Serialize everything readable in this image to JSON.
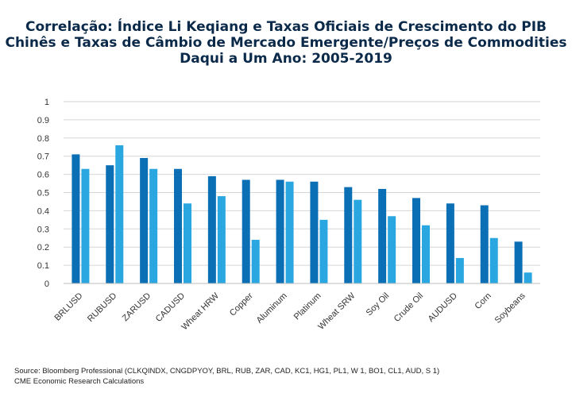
{
  "chart_data": {
    "type": "bar",
    "title_lines": [
      "Correlação: Índice Li Keqiang e Taxas Oficiais de Crescimento do PIB",
      "Chinês e Taxas de Câmbio de Mercado Emergente/Preços de Commodities",
      "Daqui a Um Ano: 2005-2019"
    ],
    "categories": [
      "BRLUSD",
      "RUBUSD",
      "ZARUSD",
      "CADUSD",
      "Wheat HRW",
      "Copper",
      "Aluminum",
      "Platinum",
      "Wheat SRW",
      "Soy Oil",
      "Crude Oil",
      "AUDUSD",
      "Corn",
      "Soybeans"
    ],
    "series": [
      {
        "values": [
          0.71,
          0.65,
          0.69,
          0.63,
          0.59,
          0.57,
          0.57,
          0.56,
          0.53,
          0.52,
          0.47,
          0.44,
          0.43,
          0.23
        ],
        "color": "#0a6fb5"
      },
      {
        "values": [
          0.63,
          0.76,
          0.63,
          0.44,
          0.48,
          0.24,
          0.56,
          0.35,
          0.46,
          0.37,
          0.32,
          0.14,
          0.25,
          0.06
        ],
        "color": "#2aa7e0"
      }
    ],
    "ylim": [
      0,
      1
    ],
    "yticks": [
      "0",
      "0.1",
      "0.2",
      "0.3",
      "0.4",
      "0.5",
      "0.6",
      "0.7",
      "0.8",
      "0.9",
      "1"
    ],
    "grid": true,
    "xlabel": "",
    "ylabel": ""
  },
  "source_lines": [
    "Source: Bloomberg Professional (CLKQINDX, CNGDPYOY, BRL, RUB, ZAR, CAD, KC1, HG1, PL1, W 1, BO1, CL1, AUD, S 1)",
    "CME Economic Research Calculations"
  ]
}
